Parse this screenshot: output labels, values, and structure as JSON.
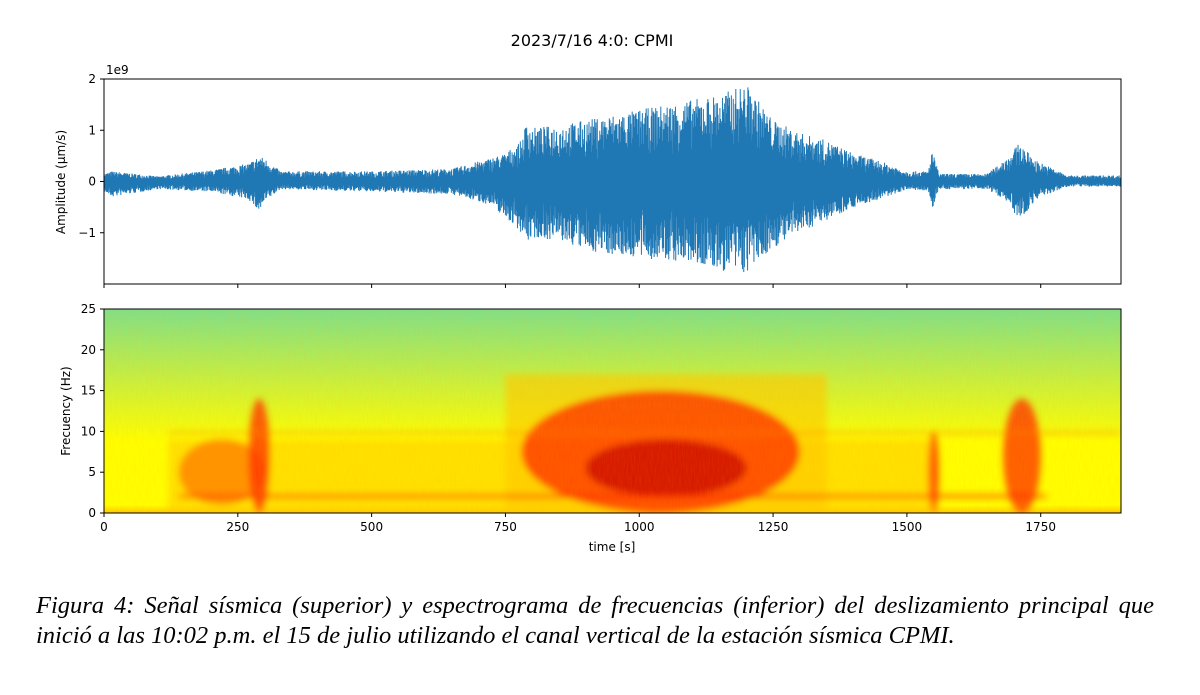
{
  "chart_data": [
    {
      "type": "line",
      "title": "2023/7/16 4:0: CPMI",
      "ylabel": "Amplitude (μm/s)",
      "y_offset_label": "1e9",
      "xlim": [
        0,
        1900
      ],
      "ylim": [
        -2.0,
        2.0
      ],
      "x_ticks": [
        0,
        250,
        500,
        750,
        1000,
        1250,
        1500,
        1750
      ],
      "y_ticks": [
        {
          "value": 2,
          "label": "2"
        },
        {
          "value": 1,
          "label": "1"
        },
        {
          "value": 0,
          "label": "0"
        },
        {
          "value": -1,
          "label": "−1"
        }
      ],
      "series_color": "#1f77b4",
      "envelope": {
        "time_s": [
          0,
          15,
          100,
          200,
          270,
          290,
          300,
          330,
          500,
          650,
          720,
          750,
          780,
          790,
          800,
          850,
          900,
          1000,
          1100,
          1150,
          1200,
          1250,
          1300,
          1350,
          1400,
          1450,
          1500,
          1540,
          1547,
          1560,
          1650,
          1690,
          1710,
          1740,
          1800,
          1900
        ],
        "upper_1e9": [
          0.15,
          0.2,
          0.1,
          0.22,
          0.35,
          0.5,
          0.45,
          0.2,
          0.2,
          0.25,
          0.45,
          0.55,
          0.8,
          1.2,
          1.05,
          1.1,
          1.2,
          1.4,
          1.6,
          1.7,
          1.9,
          1.2,
          0.95,
          0.8,
          0.55,
          0.4,
          0.2,
          0.2,
          0.62,
          0.15,
          0.15,
          0.5,
          0.75,
          0.42,
          0.12,
          0.12
        ],
        "lower_1e9": [
          -0.2,
          -0.3,
          -0.15,
          -0.2,
          -0.35,
          -0.6,
          -0.4,
          -0.15,
          -0.2,
          -0.25,
          -0.45,
          -0.7,
          -1.0,
          -1.2,
          -1.1,
          -1.15,
          -1.35,
          -1.5,
          -1.6,
          -1.75,
          -1.8,
          -1.3,
          -1.0,
          -0.75,
          -0.5,
          -0.35,
          -0.15,
          -0.2,
          -0.55,
          -0.15,
          -0.15,
          -0.4,
          -0.8,
          -0.35,
          -0.1,
          -0.1
        ]
      }
    },
    {
      "type": "heatmap",
      "xlabel": "time [s]",
      "ylabel": "Frecuency (Hz)",
      "xlim": [
        0,
        1900
      ],
      "ylim": [
        0,
        25
      ],
      "x_ticks": [
        0,
        250,
        500,
        750,
        1000,
        1250,
        1500,
        1750
      ],
      "x_tick_labels": [
        "0",
        "250",
        "500",
        "750",
        "1000",
        "1250",
        "1500",
        "1750"
      ],
      "y_ticks": [
        0,
        5,
        10,
        15,
        20,
        25
      ],
      "colormap": "jet (yellow-green low → red high)",
      "colormap_stops": [
        "#7fe08a",
        "#c8f040",
        "#ffff00",
        "#ffc800",
        "#ff7a00",
        "#ff2a00",
        "#c80000"
      ],
      "energy_regions": [
        {
          "t_start": 140,
          "t_end": 300,
          "f_low": 1,
          "f_high": 9,
          "level": 0.6
        },
        {
          "t_start": 270,
          "t_end": 310,
          "f_low": 0,
          "f_high": 14,
          "level": 0.8
        },
        {
          "t_start": 780,
          "t_end": 1300,
          "f_low": 0,
          "f_high": 15,
          "level": 0.85
        },
        {
          "t_start": 900,
          "t_end": 1200,
          "f_low": 2,
          "f_high": 9,
          "level": 1.0
        },
        {
          "t_start": 1540,
          "t_end": 1560,
          "f_low": 0,
          "f_high": 10,
          "level": 0.9
        },
        {
          "t_start": 1680,
          "t_end": 1750,
          "f_low": 0,
          "f_high": 14,
          "level": 0.85
        }
      ]
    }
  ],
  "caption": "Figura 4: Señal sísmica (superior) y espectrograma de frecuencias (inferior) del deslizamiento principal que inició a las 10:02 p.m. el 15 de julio utilizando el canal vertical de la estación sísmica CPMI."
}
